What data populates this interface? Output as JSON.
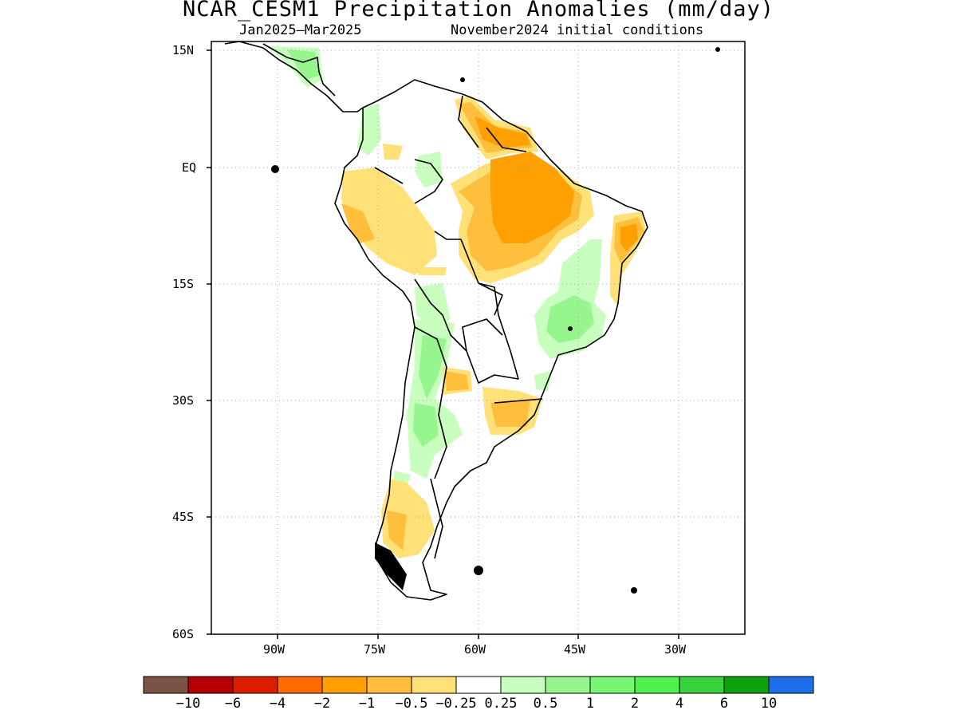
{
  "title": "NCAR_CESM1 Precipitation Anomalies (mm/day)",
  "subtitle_left": "Jan2025–Mar2025",
  "subtitle_right": "November2024 initial conditions",
  "lat_ticks": [
    "15N",
    "EQ",
    "15S",
    "30S",
    "45S",
    "60S"
  ],
  "lon_ticks": [
    "90W",
    "75W",
    "60W",
    "45W",
    "30W"
  ],
  "colorbar": {
    "colors": [
      "#7a5246",
      "#b40000",
      "#dc1e00",
      "#ff6a00",
      "#ffa000",
      "#ffbe3c",
      "#ffe178",
      "#ffffff",
      "#c8ffbe",
      "#96f58c",
      "#78f573",
      "#50f050",
      "#37d23c",
      "#0fa00f",
      "#1e6eeb"
    ],
    "labels": [
      "−10",
      "−6",
      "−4",
      "−2",
      "−1",
      "−0.5",
      "−0.25",
      "0.25",
      "0.5",
      "1",
      "2",
      "4",
      "6",
      "10"
    ]
  },
  "map_data": {
    "lon_range": [
      -100,
      -20
    ],
    "lat_range": [
      -60,
      15
    ],
    "anomaly_regions": [
      {
        "name": "north-brazil-dry",
        "value": -1,
        "color": "#ffa000"
      },
      {
        "name": "amazon-dry-outer",
        "value": -0.5,
        "color": "#ffbe3c"
      },
      {
        "name": "northeast-brazil-dry",
        "value": -1,
        "color": "#ffa000"
      },
      {
        "name": "east-brazil-wet",
        "value": 1,
        "color": "#96f58c"
      },
      {
        "name": "andes-wet",
        "value": 0.5,
        "color": "#c8ffbe"
      },
      {
        "name": "southern-brazil-dry",
        "value": -0.5,
        "color": "#ffbe3c"
      },
      {
        "name": "patagonia-dry",
        "value": -0.5,
        "color": "#ffbe3c"
      }
    ]
  }
}
